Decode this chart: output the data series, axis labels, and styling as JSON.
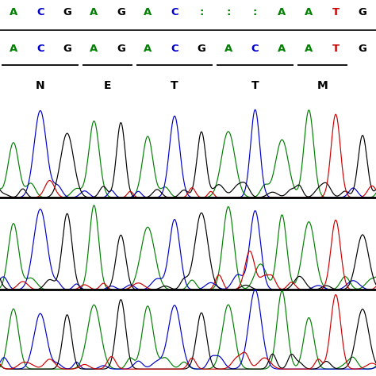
{
  "bg_color": "#ffffff",
  "top_sequence": [
    "A",
    "C",
    "G",
    "A",
    "G",
    "A",
    "C",
    ":",
    ":",
    ":",
    "A",
    "A",
    "T",
    "G"
  ],
  "top_seq_colors": [
    "#008000",
    "#0000cd",
    "#000000",
    "#008000",
    "#000000",
    "#008000",
    "#0000cd",
    "#008000",
    "#008000",
    "#008000",
    "#008000",
    "#008000",
    "#cc0000",
    "#000000"
  ],
  "bottom_sequence": [
    "A",
    "C",
    "G",
    "A",
    "G",
    "A",
    "C",
    "G",
    "A",
    "C",
    "A",
    "A",
    "T",
    "G"
  ],
  "bottom_seq_colors": [
    "#008000",
    "#0000cd",
    "#000000",
    "#008000",
    "#000000",
    "#008000",
    "#0000cd",
    "#000000",
    "#008000",
    "#0000cd",
    "#008000",
    "#008000",
    "#cc0000",
    "#000000"
  ],
  "amino_acids": [
    "N",
    "E",
    "T",
    "T",
    "M"
  ],
  "underline_groups": [
    [
      0,
      2
    ],
    [
      3,
      4
    ],
    [
      5,
      7
    ],
    [
      8,
      10
    ],
    [
      11,
      12
    ]
  ],
  "colors": {
    "green": "#008000",
    "blue": "#0000cd",
    "black": "#000000",
    "red": "#cc0000"
  },
  "seq_base_colors": {
    "A": "#008000",
    "C": "#0000cd",
    "G": "#000000",
    "T": "#cc0000"
  }
}
